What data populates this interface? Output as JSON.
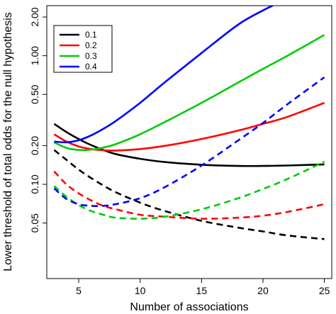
{
  "chart_data": {
    "type": "line",
    "title": "",
    "xlabel": "Number of associations",
    "ylabel": "Lower threshold of total odds for the null hypothesis",
    "xlim": [
      2.4,
      25.6
    ],
    "ylim": [
      0.0185,
      2.45
    ],
    "y_scale": "log",
    "x_ticks": [
      5,
      10,
      15,
      20,
      25
    ],
    "x_tick_labels": [
      "5",
      "10",
      "15",
      "20",
      "25"
    ],
    "y_ticks": [
      0.05,
      0.1,
      0.2,
      0.5,
      1,
      2
    ],
    "y_tick_labels": [
      "0.05",
      "0.10",
      "0.20",
      "0.50",
      "1.00",
      "2.00"
    ],
    "grid": false,
    "legend_position": "top-left",
    "series": [
      {
        "name": "0.1",
        "color": "#000000",
        "line_style": "solid",
        "x": [
          3,
          4,
          5,
          6,
          7,
          8,
          10,
          12,
          15,
          18,
          20,
          22,
          25
        ],
        "y": [
          0.295,
          0.255,
          0.225,
          0.202,
          0.185,
          0.172,
          0.158,
          0.149,
          0.142,
          0.139,
          0.139,
          0.14,
          0.143
        ]
      },
      {
        "name": "0.2",
        "color": "#ff0000",
        "line_style": "solid",
        "x": [
          3,
          4,
          5,
          6,
          7,
          8,
          10,
          12,
          15,
          18,
          20,
          22,
          25
        ],
        "y": [
          0.245,
          0.215,
          0.197,
          0.188,
          0.184,
          0.183,
          0.188,
          0.199,
          0.225,
          0.262,
          0.295,
          0.335,
          0.43
        ]
      },
      {
        "name": "0.3",
        "color": "#00cc00",
        "line_style": "solid",
        "x": [
          3,
          4,
          5,
          6,
          7,
          8,
          10,
          12,
          15,
          18,
          20,
          22,
          25
        ],
        "y": [
          0.212,
          0.192,
          0.185,
          0.186,
          0.193,
          0.205,
          0.245,
          0.305,
          0.43,
          0.62,
          0.79,
          1.0,
          1.45
        ]
      },
      {
        "name": "0.4",
        "color": "#0000ff",
        "line_style": "solid",
        "x": [
          3,
          4,
          5,
          6,
          7,
          8,
          10,
          12,
          15,
          18,
          20,
          20.8
        ],
        "y": [
          0.215,
          0.212,
          0.22,
          0.24,
          0.27,
          0.31,
          0.43,
          0.62,
          1.05,
          1.75,
          2.25,
          2.45
        ]
      },
      {
        "name": "0.1",
        "color": "#000000",
        "line_style": "dashed",
        "x": [
          3,
          4,
          5,
          6,
          7,
          8,
          10,
          12,
          15,
          18,
          20,
          22,
          25
        ],
        "y": [
          0.185,
          0.155,
          0.13,
          0.112,
          0.098,
          0.087,
          0.072,
          0.062,
          0.052,
          0.046,
          0.043,
          0.04,
          0.0375
        ]
      },
      {
        "name": "0.2",
        "color": "#ff0000",
        "line_style": "dashed",
        "x": [
          3,
          4,
          5,
          6,
          7,
          8,
          10,
          12,
          15,
          18,
          20,
          22,
          25
        ],
        "y": [
          0.126,
          0.1,
          0.085,
          0.075,
          0.068,
          0.064,
          0.058,
          0.056,
          0.054,
          0.055,
          0.057,
          0.061,
          0.07
        ]
      },
      {
        "name": "0.3",
        "color": "#00cc00",
        "line_style": "dashed",
        "x": [
          3,
          4,
          5,
          6,
          7,
          8,
          10,
          12,
          15,
          18,
          20,
          22,
          25
        ],
        "y": [
          0.097,
          0.08,
          0.069,
          0.062,
          0.058,
          0.055,
          0.054,
          0.056,
          0.064,
          0.078,
          0.092,
          0.11,
          0.15
        ]
      },
      {
        "name": "0.4",
        "color": "#0000ff",
        "line_style": "dashed",
        "x": [
          3,
          4,
          5,
          6,
          7,
          8,
          10,
          12,
          15,
          18,
          20,
          22,
          25
        ],
        "y": [
          0.093,
          0.077,
          0.07,
          0.068,
          0.068,
          0.07,
          0.078,
          0.095,
          0.14,
          0.22,
          0.3,
          0.42,
          0.68
        ]
      }
    ]
  }
}
